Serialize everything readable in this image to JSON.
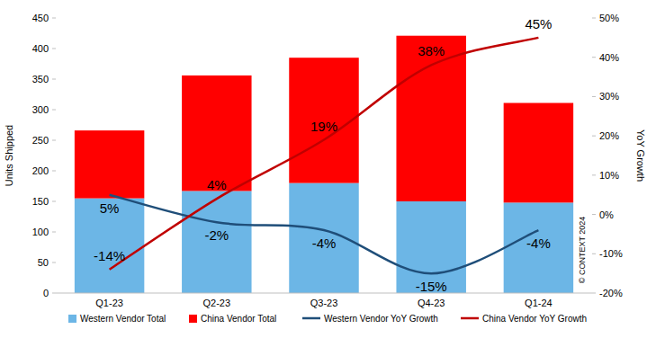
{
  "chart_data": {
    "type": "bar",
    "stacked": true,
    "grid": false,
    "legend": "bottom",
    "data_labels": true,
    "categories": [
      "Q1-23",
      "Q2-23",
      "Q3-23",
      "Q4-23",
      "Q1-24"
    ],
    "y_label": "Units Shipped",
    "y2_label": "YoY Growth",
    "annotations": [
      "© CONTEXT 2024"
    ],
    "ylim": [
      0,
      450
    ],
    "yticks": [
      0,
      50,
      100,
      150,
      200,
      250,
      300,
      350,
      400,
      450
    ],
    "y2lim": [
      -20,
      50
    ],
    "y2ticks": [
      {
        "value": -20,
        "label": "-20%"
      },
      {
        "value": -10,
        "label": "-10%"
      },
      {
        "value": 0,
        "label": "0%"
      },
      {
        "value": 10,
        "label": "10%"
      },
      {
        "value": 20,
        "label": "20%"
      },
      {
        "value": 30,
        "label": "30%"
      },
      {
        "value": 40,
        "label": "40%"
      },
      {
        "value": 50,
        "label": "50%"
      }
    ],
    "series": [
      {
        "name": "Western Vendor Total",
        "type": "bar",
        "color": "#6cb6e6",
        "values": [
          155,
          167,
          180,
          150,
          148
        ]
      },
      {
        "name": "China Vendor Total",
        "type": "bar",
        "color": "#ff0000",
        "values": [
          111,
          189,
          205,
          271,
          163
        ]
      },
      {
        "name": "Western Vendor YoY Growth",
        "type": "line",
        "axis": "y2",
        "color": "#1f4e79",
        "line_style": "smooth",
        "values": [
          5,
          -2,
          -4,
          -15,
          -4
        ],
        "value_labels": [
          "5%",
          "-2%",
          "-4%",
          "-15%",
          "-4%"
        ]
      },
      {
        "name": "China Vendor YoY Growth",
        "type": "line",
        "axis": "y2",
        "color": "#c00000",
        "line_style": "smooth",
        "values": [
          -14,
          4,
          19,
          38,
          45
        ],
        "value_labels": [
          "-14%",
          "4%",
          "19%",
          "38%",
          "45%"
        ]
      }
    ]
  }
}
